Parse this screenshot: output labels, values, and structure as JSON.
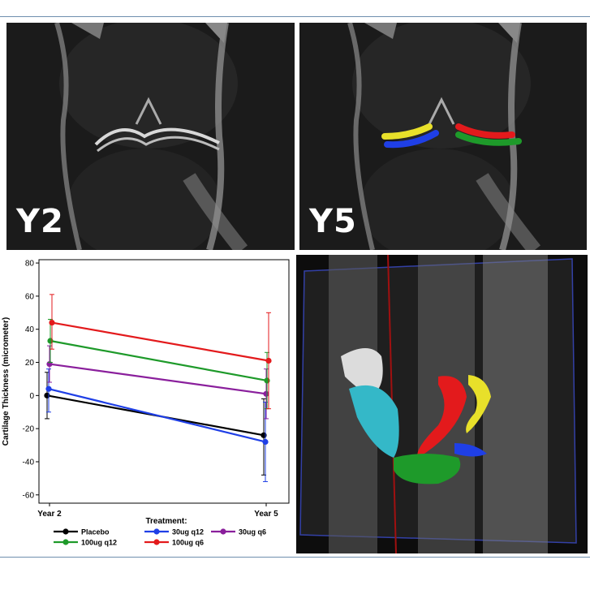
{
  "panels": {
    "mri_left_label": "Y2",
    "mri_right_label": "Y5"
  },
  "colors": {
    "placebo": "#000000",
    "30ug_q12": "#1f3fe6",
    "30ug_q6": "#8a1f9c",
    "100ug_q12": "#1e9a2a",
    "100ug_q6": "#e31a1c",
    "segment_yellow": "#e8e02a",
    "segment_cyan": "#34b8c8",
    "frame_line": "#6f8fae"
  },
  "chart_data": {
    "type": "line",
    "title": "",
    "xlabel": "",
    "ylabel": "Cartilage Thickness (micrometer)",
    "categories": [
      "Year 2",
      "Year 5"
    ],
    "ylim": [
      -65,
      82
    ],
    "yticks": [
      80,
      60,
      40,
      20,
      0,
      -20,
      -40,
      -60
    ],
    "grid": false,
    "legend_title": "Treatment:",
    "legend_position": "bottom",
    "series": [
      {
        "name": "Placebo",
        "color": "#000000",
        "values": [
          0,
          -24
        ],
        "err_low": [
          -14,
          -48
        ],
        "err_high": [
          14,
          -2
        ]
      },
      {
        "name": "30ug q12",
        "color": "#1f3fe6",
        "values": [
          4,
          -28
        ],
        "err_low": [
          -10,
          -52
        ],
        "err_high": [
          16,
          -4
        ]
      },
      {
        "name": "30ug q6",
        "color": "#8a1f9c",
        "values": [
          19,
          1
        ],
        "err_low": [
          8,
          -14
        ],
        "err_high": [
          30,
          16
        ]
      },
      {
        "name": "100ug q12",
        "color": "#1e9a2a",
        "values": [
          33,
          9
        ],
        "err_low": [
          20,
          -8
        ],
        "err_high": [
          46,
          26
        ]
      },
      {
        "name": "100ug q6",
        "color": "#e31a1c",
        "values": [
          44,
          21
        ],
        "err_low": [
          28,
          -8
        ],
        "err_high": [
          61,
          50
        ]
      }
    ]
  }
}
